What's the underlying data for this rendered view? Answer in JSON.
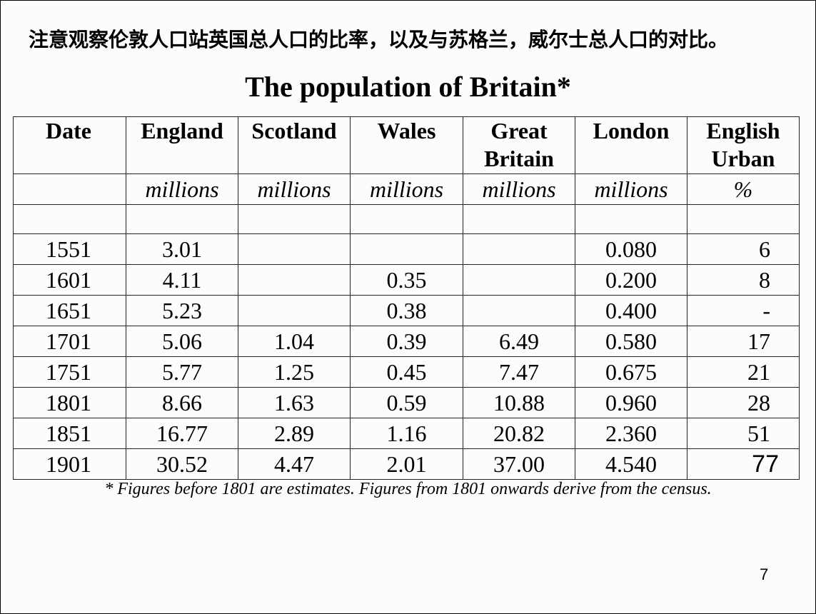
{
  "heading_cn": "注意观察伦敦人口站英国总人口的比率，以及与苏格兰，威尔士总人口的对比。",
  "title": "The population of Britain*",
  "table": {
    "headers": [
      "Date",
      "England",
      "Scotland",
      "Wales",
      "Great Britain",
      "London",
      "English Urban"
    ],
    "units": [
      "",
      "millions",
      "millions",
      "millions",
      "millions",
      "millions",
      "%"
    ],
    "rows": [
      [
        "1551",
        "3.01",
        "",
        "",
        "",
        "0.080",
        "6"
      ],
      [
        "1601",
        "4.11",
        "",
        "0.35",
        "",
        "0.200",
        "8"
      ],
      [
        "1651",
        "5.23",
        "",
        "0.38",
        "",
        "0.400",
        "-"
      ],
      [
        "1701",
        "5.06",
        "1.04",
        "0.39",
        "6.49",
        "0.580",
        "17"
      ],
      [
        "1751",
        "5.77",
        "1.25",
        "0.45",
        "7.47",
        "0.675",
        "21"
      ],
      [
        "1801",
        "8.66",
        "1.63",
        "0.59",
        "10.88",
        "0.960",
        "28"
      ],
      [
        "1851",
        "16.77",
        "2.89",
        "1.16",
        "20.82",
        "2.360",
        "51"
      ],
      [
        "1901",
        "30.52",
        "4.47",
        "2.01",
        "37.00",
        "4.540",
        "77"
      ]
    ]
  },
  "footnote": "* Figures before 1801 are estimates.  Figures from 1801 onwards derive from the census.",
  "page_number": "7"
}
